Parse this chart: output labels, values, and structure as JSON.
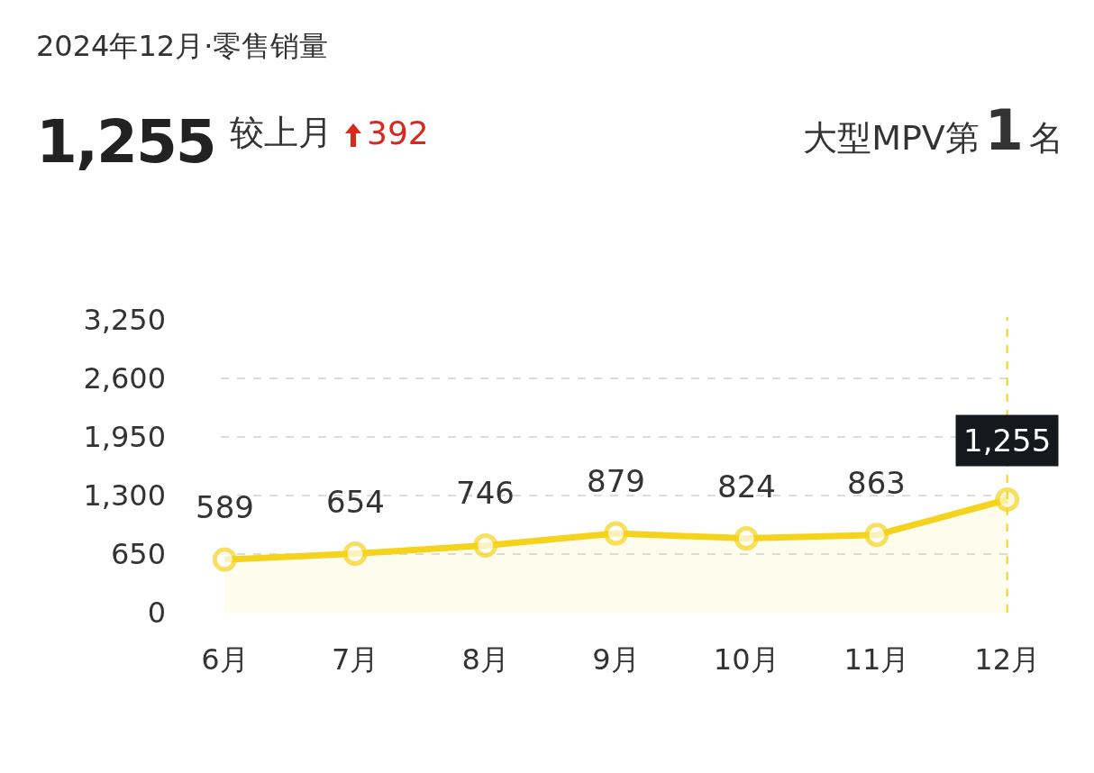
{
  "chart_data": {
    "type": "area",
    "title": "2024年12月·零售销量",
    "annotations": [
      "1,255",
      "较上月",
      "392",
      "大型MPV第",
      "1",
      "名"
    ],
    "categories": [
      "6月",
      "7月",
      "8月",
      "9月",
      "10月",
      "11月",
      "12月"
    ],
    "series": [
      {
        "color": "#f5d31c",
        "values": [
          589,
          654,
          746,
          879,
          824,
          863,
          1255
        ],
        "value_labels": [
          "589",
          "654",
          "746",
          "879",
          "824",
          "863",
          "1,255"
        ]
      }
    ],
    "ylim": [
      0,
      3250
    ],
    "yticks": [
      0,
      650,
      {
        "value": 1300,
        "label": "1,300"
      },
      {
        "value": 1950,
        "label": "1,950"
      },
      {
        "value": 2600,
        "label": "2,600"
      },
      {
        "value": 3250,
        "label": "3,250"
      }
    ],
    "grid": "y",
    "marker": "circle",
    "line_style": "solid",
    "legend": false,
    "ref_lines": [
      {
        "axis": "x",
        "value": "12月",
        "color": "#f5d31c",
        "line_style": "dashed"
      }
    ]
  }
}
